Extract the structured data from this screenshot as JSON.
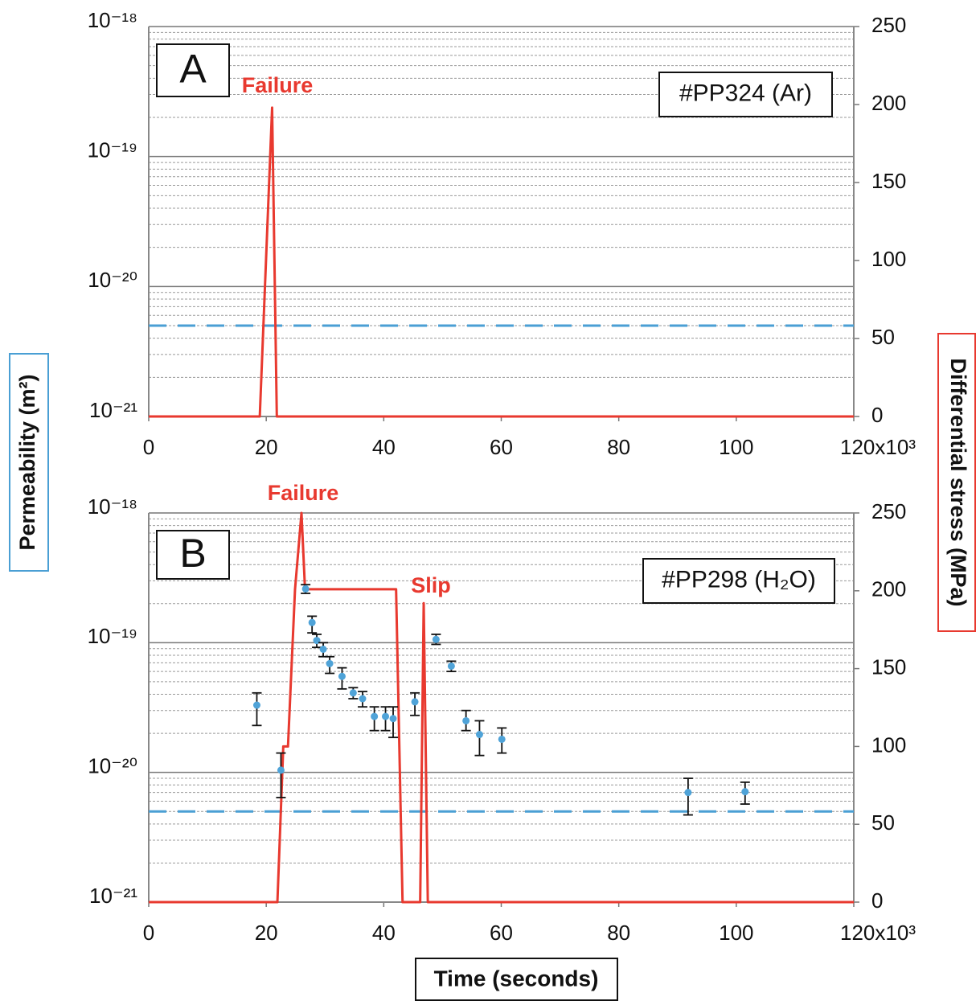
{
  "chart_data": [
    {
      "type": "line",
      "label": "A",
      "sample": "#PP324 (Ar)",
      "annotations": [
        "Failure"
      ],
      "log_y": true,
      "grid": true,
      "xlim": [
        0,
        120
      ],
      "xticks": [
        0,
        20,
        40,
        60,
        80,
        100,
        {
          "value": 120,
          "label": "120x10³"
        }
      ],
      "ylim": [
        1e-21,
        1e-18
      ],
      "yticks": [
        {
          "value": 1e-21,
          "label": "10⁻²¹"
        },
        {
          "value": 1e-20,
          "label": "10⁻²⁰"
        },
        {
          "value": 1e-19,
          "label": "10⁻¹⁹"
        },
        {
          "value": 1e-18,
          "label": "10⁻¹⁸"
        }
      ],
      "minor_yticks": [
        2e-21,
        3e-21,
        4e-21,
        5e-21,
        6e-21,
        7e-21,
        8e-21,
        9e-21,
        2e-20,
        3e-20,
        4e-20,
        5e-20,
        6e-20,
        7e-20,
        8e-20,
        9e-20,
        2e-19,
        3e-19,
        4e-19,
        5e-19,
        6e-19,
        7e-19,
        8e-19,
        9e-19
      ],
      "y2lim": [
        0,
        250
      ],
      "y2ticks": [
        0,
        50,
        100,
        150,
        200,
        250
      ],
      "hline": {
        "value": 5e-21,
        "color": "#4a9fd4"
      },
      "series": [
        {
          "type": "line",
          "axis": "y2",
          "color": "#e8392f",
          "x": [
            0,
            18.9,
            21.0,
            21.8,
            120
          ],
          "values": [
            0,
            0,
            198,
            0,
            0
          ]
        }
      ]
    },
    {
      "type": "line",
      "label": "B",
      "sample": "#PP298 (H₂O)",
      "annotations": [
        "Failure",
        "Slip"
      ],
      "log_y": true,
      "grid": true,
      "xlim": [
        0,
        120
      ],
      "xticks": [
        0,
        20,
        40,
        60,
        80,
        100,
        {
          "value": 120,
          "label": "120x10³"
        }
      ],
      "ylim": [
        1e-21,
        1e-18
      ],
      "yticks": [
        {
          "value": 1e-21,
          "label": "10⁻²¹"
        },
        {
          "value": 1e-20,
          "label": "10⁻²⁰"
        },
        {
          "value": 1e-19,
          "label": "10⁻¹⁹"
        },
        {
          "value": 1e-18,
          "label": "10⁻¹⁸"
        }
      ],
      "minor_yticks": [
        2e-21,
        3e-21,
        4e-21,
        5e-21,
        6e-21,
        7e-21,
        8e-21,
        9e-21,
        2e-20,
        3e-20,
        4e-20,
        5e-20,
        6e-20,
        7e-20,
        8e-20,
        9e-20,
        2e-19,
        3e-19,
        4e-19,
        5e-19,
        6e-19,
        7e-19,
        8e-19,
        9e-19
      ],
      "y2lim": [
        0,
        250
      ],
      "y2ticks": [
        0,
        50,
        100,
        150,
        200,
        250
      ],
      "hline": {
        "value": 5e-21,
        "color": "#4a9fd4"
      },
      "series": [
        {
          "type": "line",
          "axis": "y2",
          "color": "#e8392f",
          "x": [
            0,
            21.9,
            22.9,
            23.7,
            24.9,
            26.0,
            26.6,
            42.1,
            43.2,
            46.2,
            46.8,
            47.5,
            120
          ],
          "values": [
            0,
            0,
            100,
            100,
            201,
            250,
            201,
            201,
            0,
            0,
            192,
            0,
            0
          ]
        },
        {
          "type": "scatter",
          "color": "#4fa3d8",
          "x": [
            18.4,
            22.5,
            26.7,
            27.8,
            28.6,
            29.7,
            30.8,
            32.9,
            34.8,
            36.4,
            38.4,
            40.3,
            41.6,
            45.3,
            48.9,
            51.5,
            54.0,
            56.3,
            60.1,
            91.8,
            101.5
          ],
          "values": [
            3.3e-20,
            1.04e-20,
            2.6e-19,
            1.43e-19,
            1.04e-19,
            8.9e-20,
            6.9e-20,
            5.5e-20,
            4.1e-20,
            3.7e-20,
            2.7e-20,
            2.7e-20,
            2.6e-20,
            3.5e-20,
            1.06e-19,
            6.6e-20,
            2.5e-20,
            1.96e-20,
            1.8e-20,
            7e-21,
            7.1e-21
          ],
          "lower": [
            2.3e-20,
            6.4e-21,
            2.4e-19,
            1.19e-19,
            9.2e-20,
            7.8e-20,
            5.8e-20,
            4.4e-20,
            3.7e-20,
            3.2e-20,
            2.1e-20,
            2.1e-20,
            1.86e-20,
            2.75e-20,
            9.7e-20,
            6e-20,
            2.1e-20,
            1.35e-20,
            1.41e-20,
            4.7e-21,
            5.7e-21
          ],
          "upper": [
            4.1e-20,
            1.41e-20,
            2.8e-19,
            1.6e-19,
            1.16e-19,
            1e-19,
            7.8e-20,
            6.4e-20,
            4.5e-20,
            4.2e-20,
            3.2e-20,
            3.2e-20,
            3.2e-20,
            4.1e-20,
            1.16e-19,
            7.2e-20,
            3e-20,
            2.5e-20,
            2.2e-20,
            9e-21,
            8.4e-21
          ]
        }
      ]
    }
  ],
  "xlabel": "Time (seconds)",
  "ylabel": "Permeability (m²)",
  "y2label": "Differential stress (MPa)"
}
